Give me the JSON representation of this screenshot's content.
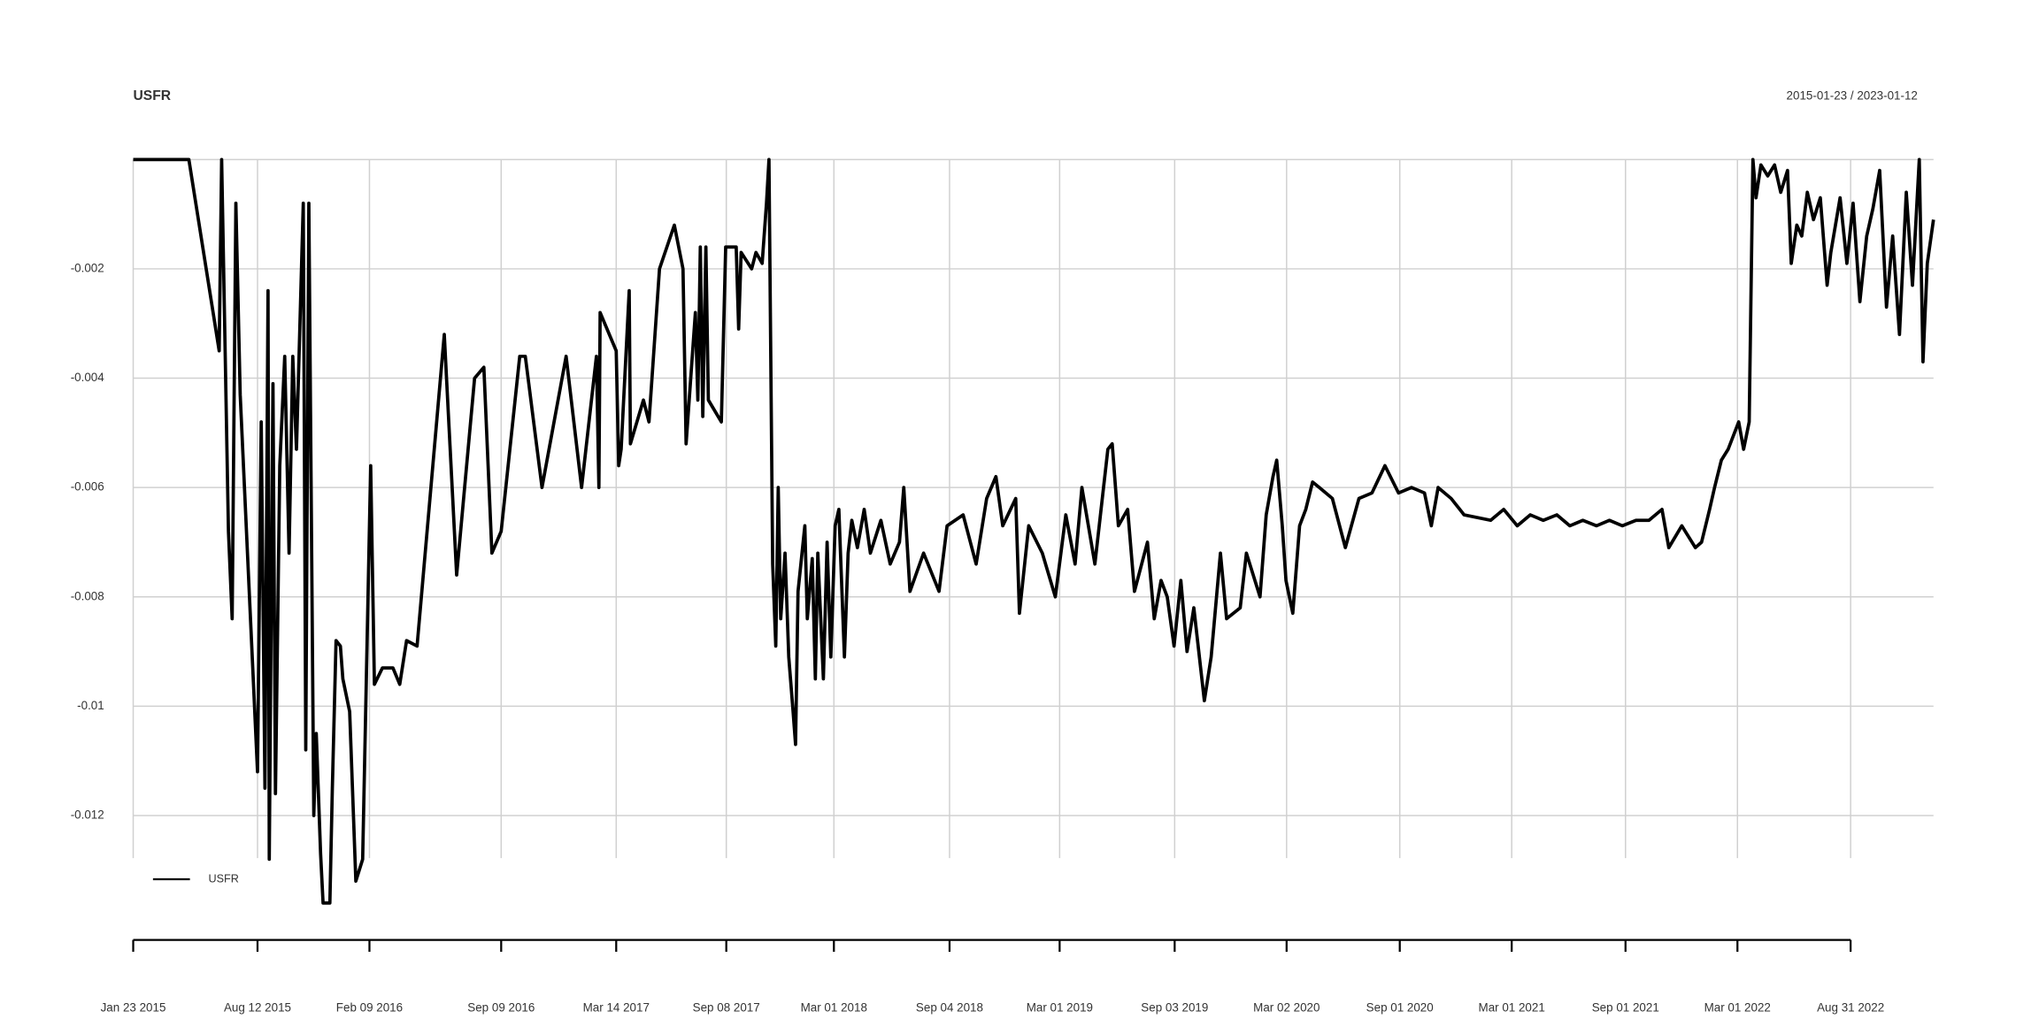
{
  "chart_data": {
    "type": "line",
    "title": "USFR",
    "subtitle": "2015-01-23 / 2023-01-12",
    "x": [
      "2015-01-23",
      "2015-04-23",
      "2015-06-11",
      "2015-06-15",
      "2015-06-26",
      "2015-07-02",
      "2015-07-08",
      "2015-07-15",
      "2015-08-12",
      "2015-08-18",
      "2015-08-24",
      "2015-08-29",
      "2015-08-31",
      "2015-09-06",
      "2015-09-10",
      "2015-09-17",
      "2015-09-25",
      "2015-10-02",
      "2015-10-08",
      "2015-10-14",
      "2015-10-25",
      "2015-10-29",
      "2015-11-03",
      "2015-11-11",
      "2015-11-15",
      "2015-11-22",
      "2015-11-26",
      "2015-12-07",
      "2015-12-11",
      "2015-12-17",
      "2015-12-24",
      "2015-12-28",
      "2016-01-08",
      "2016-01-18",
      "2016-01-29",
      "2016-02-11",
      "2016-02-17",
      "2016-03-01",
      "2016-03-18",
      "2016-03-29",
      "2016-04-09",
      "2016-04-26",
      "2016-06-09",
      "2016-06-29",
      "2016-07-28",
      "2016-08-12",
      "2016-08-25",
      "2016-09-09",
      "2016-10-09",
      "2016-10-18",
      "2016-11-14",
      "2016-12-23",
      "2017-01-17",
      "2017-02-10",
      "2017-02-14",
      "2017-02-16",
      "2017-03-14",
      "2017-03-18",
      "2017-03-22",
      "2017-04-04",
      "2017-04-06",
      "2017-04-27",
      "2017-05-06",
      "2017-05-23",
      "2017-06-16",
      "2017-06-30",
      "2017-07-05",
      "2017-07-20",
      "2017-07-24",
      "2017-07-28",
      "2017-08-01",
      "2017-08-06",
      "2017-08-10",
      "2017-08-31",
      "2017-09-07",
      "2017-09-24",
      "2017-09-28",
      "2017-10-02",
      "2017-10-19",
      "2017-10-26",
      "2017-11-05",
      "2017-11-12",
      "2017-11-16",
      "2017-11-22",
      "2017-11-27",
      "2017-12-01",
      "2017-12-05",
      "2017-12-12",
      "2017-12-18",
      "2017-12-25",
      "2017-12-29",
      "2018-01-02",
      "2018-01-13",
      "2018-01-17",
      "2018-01-25",
      "2018-01-30",
      "2018-02-03",
      "2018-02-12",
      "2018-02-18",
      "2018-02-24",
      "2018-03-03",
      "2018-03-09",
      "2018-03-18",
      "2018-03-24",
      "2018-03-30",
      "2018-04-08",
      "2018-04-19",
      "2018-04-29",
      "2018-05-16",
      "2018-05-31",
      "2018-06-15",
      "2018-06-22",
      "2018-07-02",
      "2018-07-24",
      "2018-08-18",
      "2018-08-31",
      "2018-09-26",
      "2018-10-17",
      "2018-11-03",
      "2018-11-18",
      "2018-11-29",
      "2018-12-20",
      "2018-12-26",
      "2019-01-10",
      "2019-02-01",
      "2019-02-22",
      "2019-03-11",
      "2019-03-26",
      "2019-04-06",
      "2019-04-27",
      "2019-05-18",
      "2019-05-25",
      "2019-06-04",
      "2019-06-19",
      "2019-06-30",
      "2019-07-21",
      "2019-08-01",
      "2019-08-12",
      "2019-08-22",
      "2019-09-02",
      "2019-09-13",
      "2019-09-23",
      "2019-10-04",
      "2019-10-21",
      "2019-11-01",
      "2019-11-16",
      "2019-11-26",
      "2019-12-18",
      "2019-12-28",
      "2020-01-19",
      "2020-01-29",
      "2020-02-09",
      "2020-02-15",
      "2020-02-24",
      "2020-03-01",
      "2020-03-12",
      "2020-03-23",
      "2020-04-02",
      "2020-04-13",
      "2020-04-24",
      "2020-05-15",
      "2020-06-05",
      "2020-06-27",
      "2020-07-18",
      "2020-08-08",
      "2020-08-30",
      "2020-09-20",
      "2020-10-11",
      "2020-10-22",
      "2020-11-02",
      "2020-11-23",
      "2020-12-14",
      "2021-01-26",
      "2021-02-16",
      "2021-03-10",
      "2021-03-31",
      "2021-04-21",
      "2021-05-13",
      "2021-06-03",
      "2021-06-24",
      "2021-07-16",
      "2021-08-06",
      "2021-08-27",
      "2021-09-18",
      "2021-10-09",
      "2021-10-30",
      "2021-11-10",
      "2021-12-01",
      "2021-12-23",
      "2022-01-02",
      "2022-01-15",
      "2022-01-23",
      "2022-02-03",
      "2022-02-14",
      "2022-03-03",
      "2022-03-11",
      "2022-03-20",
      "2022-03-26",
      "2022-03-31",
      "2022-04-08",
      "2022-04-19",
      "2022-04-30",
      "2022-05-10",
      "2022-05-21",
      "2022-05-27",
      "2022-06-05",
      "2022-06-13",
      "2022-06-22",
      "2022-07-02",
      "2022-07-13",
      "2022-07-24",
      "2022-07-30",
      "2022-08-14",
      "2022-08-25",
      "2022-09-04",
      "2022-09-15",
      "2022-09-26",
      "2022-10-06",
      "2022-10-17",
      "2022-10-28",
      "2022-11-07",
      "2022-11-18",
      "2022-11-29",
      "2022-12-09",
      "2022-12-20",
      "2022-12-26",
      "2023-01-02",
      "2023-01-12"
    ],
    "series": [
      {
        "name": "USFR",
        "color": "#000000",
        "values": [
          0,
          0,
          -0.0035,
          0,
          -0.0068,
          -0.0084,
          -0.0008,
          -0.0043,
          -0.0112,
          -0.0048,
          -0.0115,
          -0.0024,
          -0.0128,
          -0.0041,
          -0.0116,
          -0.0056,
          -0.0036,
          -0.0072,
          -0.0036,
          -0.0053,
          -0.0008,
          -0.0108,
          -0.0008,
          -0.012,
          -0.0105,
          -0.0127,
          -0.0136,
          -0.0136,
          -0.0115,
          -0.0088,
          -0.0089,
          -0.0095,
          -0.0101,
          -0.0132,
          -0.0128,
          -0.0056,
          -0.0096,
          -0.0093,
          -0.0093,
          -0.0096,
          -0.0088,
          -0.0089,
          -0.0032,
          -0.0076,
          -0.004,
          -0.0038,
          -0.0072,
          -0.0068,
          -0.0036,
          -0.0036,
          -0.006,
          -0.0036,
          -0.006,
          -0.0036,
          -0.006,
          -0.0028,
          -0.0035,
          -0.0056,
          -0.0053,
          -0.0024,
          -0.0052,
          -0.0044,
          -0.0048,
          -0.002,
          -0.0012,
          -0.002,
          -0.0052,
          -0.0028,
          -0.0044,
          -0.0016,
          -0.0047,
          -0.0016,
          -0.0044,
          -0.0048,
          -0.0016,
          -0.0016,
          -0.0031,
          -0.0017,
          -0.002,
          -0.0017,
          -0.0019,
          -0.0008,
          0,
          -0.0074,
          -0.0089,
          -0.006,
          -0.0084,
          -0.0072,
          -0.0091,
          -0.0101,
          -0.0107,
          -0.0079,
          -0.0067,
          -0.0084,
          -0.0073,
          -0.0095,
          -0.0072,
          -0.0095,
          -0.007,
          -0.0091,
          -0.0067,
          -0.0064,
          -0.0091,
          -0.0072,
          -0.0066,
          -0.0071,
          -0.0064,
          -0.0072,
          -0.0066,
          -0.0074,
          -0.007,
          -0.006,
          -0.0079,
          -0.0072,
          -0.0079,
          -0.0067,
          -0.0065,
          -0.0074,
          -0.0062,
          -0.0058,
          -0.0067,
          -0.0062,
          -0.0083,
          -0.0067,
          -0.0072,
          -0.008,
          -0.0065,
          -0.0074,
          -0.006,
          -0.0074,
          -0.0053,
          -0.0052,
          -0.0067,
          -0.0064,
          -0.0079,
          -0.007,
          -0.0084,
          -0.0077,
          -0.008,
          -0.0089,
          -0.0077,
          -0.009,
          -0.0082,
          -0.0099,
          -0.0091,
          -0.0072,
          -0.0084,
          -0.0082,
          -0.0072,
          -0.008,
          -0.0065,
          -0.0058,
          -0.0055,
          -0.0067,
          -0.0077,
          -0.0083,
          -0.0067,
          -0.0064,
          -0.0059,
          -0.006,
          -0.0062,
          -0.0071,
          -0.0062,
          -0.0061,
          -0.0056,
          -0.0061,
          -0.006,
          -0.0061,
          -0.0067,
          -0.006,
          -0.0062,
          -0.0065,
          -0.0066,
          -0.0064,
          -0.0067,
          -0.0065,
          -0.0066,
          -0.0065,
          -0.0067,
          -0.0066,
          -0.0067,
          -0.0066,
          -0.0067,
          -0.0066,
          -0.0066,
          -0.0064,
          -0.0071,
          -0.0067,
          -0.0071,
          -0.007,
          -0.0064,
          -0.006,
          -0.0055,
          -0.0053,
          -0.0048,
          -0.0053,
          -0.0048,
          0,
          -0.0007,
          -0.0001,
          -0.0003,
          -0.0001,
          -0.0006,
          -0.0002,
          -0.0019,
          -0.0012,
          -0.0014,
          -0.0006,
          -0.0011,
          -0.0007,
          -0.0023,
          -0.0017,
          -0.0007,
          -0.0019,
          -0.0008,
          -0.0026,
          -0.0014,
          -0.0009,
          -0.0002,
          -0.0027,
          -0.0014,
          -0.0032,
          -0.0006,
          -0.0023,
          0,
          -0.0037,
          -0.0019,
          -0.0011
        ]
      }
    ],
    "xlim": [
      "2015-01-23",
      "2023-01-12"
    ],
    "xticks": [
      {
        "value": "2015-01-23",
        "label": "Jan 23 2015"
      },
      {
        "value": "2015-08-12",
        "label": "Aug 12 2015"
      },
      {
        "value": "2016-02-09",
        "label": "Feb 09 2016"
      },
      {
        "value": "2016-09-09",
        "label": "Sep 09 2016"
      },
      {
        "value": "2017-03-14",
        "label": "Mar 14 2017"
      },
      {
        "value": "2017-09-08",
        "label": "Sep 08 2017"
      },
      {
        "value": "2018-03-01",
        "label": "Mar 01 2018"
      },
      {
        "value": "2018-09-04",
        "label": "Sep 04 2018"
      },
      {
        "value": "2019-03-01",
        "label": "Mar 01 2019"
      },
      {
        "value": "2019-09-03",
        "label": "Sep 03 2019"
      },
      {
        "value": "2020-03-02",
        "label": "Mar 02 2020"
      },
      {
        "value": "2020-09-01",
        "label": "Sep 01 2020"
      },
      {
        "value": "2021-03-01",
        "label": "Mar 01 2021"
      },
      {
        "value": "2021-09-01",
        "label": "Sep 01 2021"
      },
      {
        "value": "2022-03-01",
        "label": "Mar 01 2022"
      },
      {
        "value": "2022-08-31",
        "label": "Aug 31 2022"
      }
    ],
    "ylim": [
      -0.0136,
      0
    ],
    "yticks": [
      -0.012,
      -0.01,
      -0.008,
      -0.006,
      -0.004,
      -0.002
    ],
    "grid": true,
    "legend": "bottom-left"
  }
}
